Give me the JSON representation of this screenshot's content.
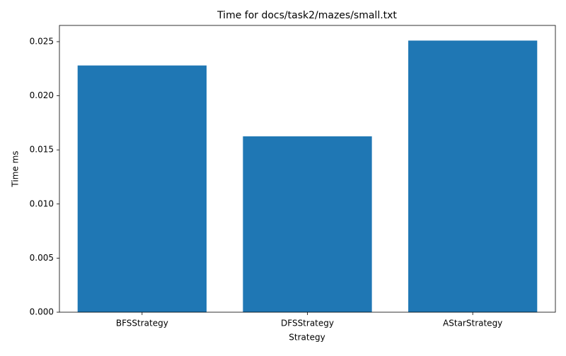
{
  "chart_data": {
    "type": "bar",
    "title": "Time for docs/task2/mazes/small.txt",
    "x_label": "Strategy",
    "y_label": "Time ms",
    "categories": [
      "BFSStrategy",
      "DFSStrategy",
      "AStarStrategy"
    ],
    "values": [
      0.0228,
      0.01625,
      0.0251
    ],
    "color": "#1f77b4",
    "ylim": [
      0,
      0.0265
    ],
    "yticks": [
      {
        "value": 0,
        "label": "0.000"
      },
      {
        "value": 0.005,
        "label": "0.005"
      },
      {
        "value": 0.01,
        "label": "0.010"
      },
      {
        "value": 0.015,
        "label": "0.015"
      },
      {
        "value": 0.02,
        "label": "0.020"
      },
      {
        "value": 0.025,
        "label": "0.025"
      }
    ],
    "grid": false
  }
}
